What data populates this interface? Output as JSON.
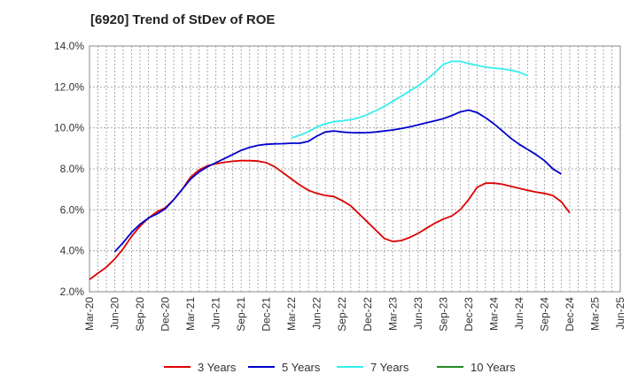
{
  "chart_data": {
    "type": "line",
    "title": "[6920]  Trend of StDev of ROE",
    "xlabel": "",
    "ylabel": "",
    "x_ticks": [
      "Mar-20",
      "Jun-20",
      "Sep-20",
      "Dec-20",
      "Mar-21",
      "Jun-21",
      "Sep-21",
      "Dec-21",
      "Mar-22",
      "Jun-22",
      "Sep-22",
      "Dec-22",
      "Mar-23",
      "Jun-23",
      "Sep-23",
      "Dec-23",
      "Mar-24",
      "Jun-24",
      "Sep-24",
      "Dec-24",
      "Mar-25",
      "Jun-25"
    ],
    "y_ticks": [
      "2.0%",
      "4.0%",
      "6.0%",
      "8.0%",
      "10.0%",
      "12.0%",
      "14.0%"
    ],
    "ylim": [
      2,
      14
    ],
    "grid": true,
    "legend_position": "bottom",
    "series": [
      {
        "name": "3 Years",
        "color": "#dd0000",
        "values": [
          2.6,
          2.9,
          3.2,
          3.6,
          4.1,
          4.7,
          5.2,
          5.6,
          5.9,
          6.1,
          6.5,
          7.0,
          7.6,
          7.95,
          8.15,
          8.25,
          8.32,
          8.37,
          8.4,
          8.4,
          8.38,
          8.3,
          8.1,
          7.8,
          7.5,
          7.2,
          6.95,
          6.8,
          6.7,
          6.65,
          6.45,
          6.2,
          5.8,
          5.4,
          5.0,
          4.6,
          4.45,
          4.5,
          4.65,
          4.85,
          5.1,
          5.35,
          5.55,
          5.7,
          6.0,
          6.5,
          7.1,
          7.3,
          7.3,
          7.25,
          7.15,
          7.05,
          6.95,
          6.87,
          6.8,
          6.7,
          6.4,
          5.85
        ]
      },
      {
        "name": "5 Years",
        "color": "#0000cc",
        "values": [
          null,
          null,
          null,
          3.95,
          4.4,
          4.9,
          5.3,
          5.6,
          5.8,
          6.05,
          6.5,
          7.0,
          7.5,
          7.85,
          8.1,
          8.3,
          8.5,
          8.7,
          8.9,
          9.05,
          9.15,
          9.2,
          9.22,
          9.23,
          9.25,
          9.25,
          9.35,
          9.6,
          9.8,
          9.85,
          9.8,
          9.77,
          9.76,
          9.77,
          9.8,
          9.85,
          9.9,
          9.97,
          10.05,
          10.15,
          10.25,
          10.35,
          10.45,
          10.6,
          10.78,
          10.87,
          10.75,
          10.5,
          10.2,
          9.85,
          9.5,
          9.2,
          8.95,
          8.7,
          8.4,
          8.0,
          7.75,
          null
        ]
      },
      {
        "name": "7 Years",
        "color": "#33eeee",
        "values": [
          null,
          null,
          null,
          null,
          null,
          null,
          null,
          null,
          null,
          null,
          null,
          null,
          null,
          null,
          null,
          null,
          null,
          null,
          null,
          null,
          null,
          null,
          null,
          null,
          9.52,
          9.65,
          9.82,
          10.05,
          10.2,
          10.3,
          10.35,
          10.4,
          10.5,
          10.65,
          10.85,
          11.05,
          11.3,
          11.55,
          11.8,
          12.05,
          12.35,
          12.7,
          13.1,
          13.25,
          13.25,
          13.15,
          13.05,
          12.97,
          12.92,
          12.88,
          12.82,
          12.72,
          12.55,
          null,
          null,
          null,
          null,
          null
        ]
      },
      {
        "name": "10 Years",
        "color": "#228822",
        "values": []
      }
    ]
  }
}
